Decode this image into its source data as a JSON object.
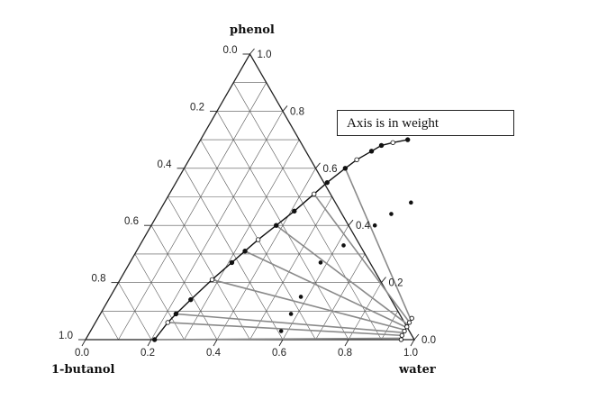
{
  "chart_data": {
    "type": "ternary",
    "vertices": {
      "top": "phenol",
      "left": "1-butanol",
      "right": "water"
    },
    "ticks": {
      "bottom": [
        "0.0",
        "0.2",
        "0.4",
        "0.6",
        "0.8",
        "1.0"
      ],
      "left": [
        "0.0",
        "0.2",
        "0.4",
        "0.6",
        "0.8",
        "1.0"
      ],
      "right": [
        "1.0",
        "0.8",
        "0.6",
        "0.4",
        "0.2",
        "0.0"
      ]
    },
    "grid": true,
    "grid_step": 0.1,
    "annotation": "Axis is in weight",
    "binodal_left": [
      {
        "water": 0.21,
        "phenol": 0.0
      },
      {
        "water": 0.22,
        "phenol": 0.06
      },
      {
        "water": 0.23,
        "phenol": 0.09
      },
      {
        "water": 0.25,
        "phenol": 0.14
      },
      {
        "water": 0.28,
        "phenol": 0.21
      },
      {
        "water": 0.31,
        "phenol": 0.27
      },
      {
        "water": 0.33,
        "phenol": 0.31
      },
      {
        "water": 0.35,
        "phenol": 0.35
      },
      {
        "water": 0.38,
        "phenol": 0.4
      },
      {
        "water": 0.41,
        "phenol": 0.45
      },
      {
        "water": 0.44,
        "phenol": 0.51
      },
      {
        "water": 0.46,
        "phenol": 0.55
      },
      {
        "water": 0.49,
        "phenol": 0.6
      },
      {
        "water": 0.51,
        "phenol": 0.63
      },
      {
        "water": 0.54,
        "phenol": 0.66
      },
      {
        "water": 0.56,
        "phenol": 0.68
      },
      {
        "water": 0.59,
        "phenol": 0.69
      },
      {
        "water": 0.63,
        "phenol": 0.7
      }
    ],
    "binodal_right": [
      {
        "water": 0.96,
        "phenol": 0.0
      },
      {
        "water": 0.955,
        "phenol": 0.015
      },
      {
        "water": 0.955,
        "phenol": 0.03
      },
      {
        "water": 0.955,
        "phenol": 0.045
      },
      {
        "water": 0.955,
        "phenol": 0.06
      },
      {
        "water": 0.955,
        "phenol": 0.075
      }
    ],
    "tie_lines": [
      {
        "left": {
          "water": 0.21,
          "phenol": 0.0
        },
        "feed": {
          "water": 0.58,
          "phenol": 0.03
        },
        "right": {
          "water": 0.955,
          "phenol": 0.005
        }
      },
      {
        "left": {
          "water": 0.22,
          "phenol": 0.06
        },
        "feed": {
          "water": 0.58,
          "phenol": 0.09
        },
        "right": {
          "water": 0.95,
          "phenol": 0.015
        }
      },
      {
        "left": {
          "water": 0.23,
          "phenol": 0.09
        },
        "feed": {
          "water": 0.58,
          "phenol": 0.15
        },
        "right": {
          "water": 0.95,
          "phenol": 0.025
        }
      },
      {
        "left": {
          "water": 0.28,
          "phenol": 0.21
        },
        "feed": {
          "water": 0.58,
          "phenol": 0.27
        },
        "right": {
          "water": 0.95,
          "phenol": 0.035
        }
      },
      {
        "left": {
          "water": 0.33,
          "phenol": 0.31
        },
        "feed": {
          "water": 0.62,
          "phenol": 0.33
        },
        "right": {
          "water": 0.95,
          "phenol": 0.045
        }
      },
      {
        "left": {
          "water": 0.38,
          "phenol": 0.4
        },
        "feed": {
          "water": 0.68,
          "phenol": 0.4
        },
        "right": {
          "water": 0.95,
          "phenol": 0.055
        }
      },
      {
        "left": {
          "water": 0.44,
          "phenol": 0.51
        },
        "feed": {
          "water": 0.71,
          "phenol": 0.44
        },
        "right": {
          "water": 0.95,
          "phenol": 0.065
        }
      },
      {
        "left": {
          "water": 0.49,
          "phenol": 0.6
        },
        "feed": {
          "water": 0.75,
          "phenol": 0.48
        },
        "right": {
          "water": 0.95,
          "phenol": 0.075
        }
      }
    ]
  }
}
